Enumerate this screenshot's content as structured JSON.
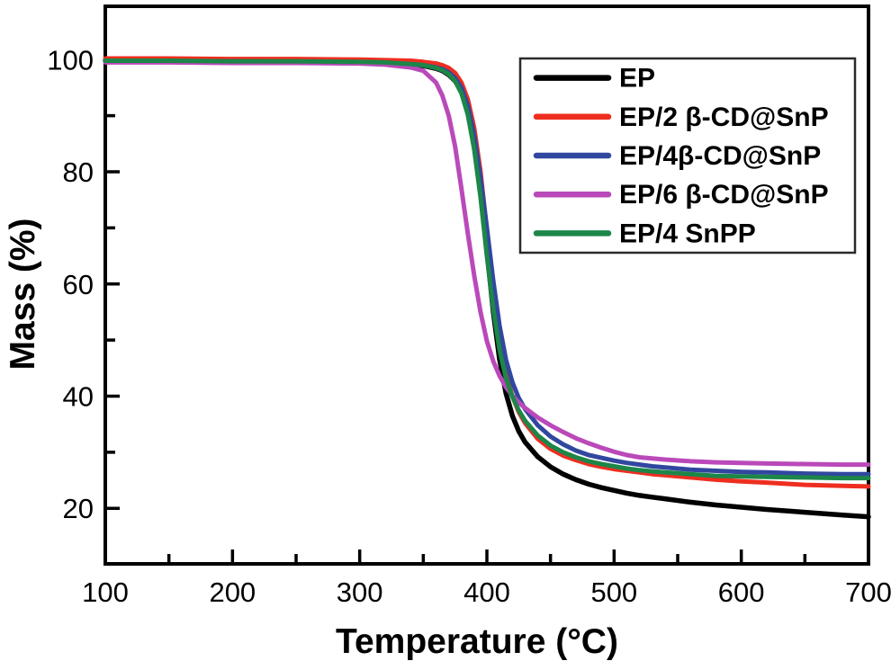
{
  "chart_data": {
    "type": "line",
    "title": "",
    "xlabel": "Temperature (°C)",
    "ylabel": "Mass (%)",
    "xlim": [
      100,
      700
    ],
    "ylim": [
      10.1,
      109.5
    ],
    "x_major_ticks": [
      100,
      200,
      300,
      400,
      500,
      600,
      700
    ],
    "x_minor_ticks": [
      150,
      250,
      350,
      450,
      550,
      650
    ],
    "y_major_ticks": [
      20,
      40,
      60,
      80,
      100
    ],
    "y_minor_ticks": [
      30,
      50,
      70,
      90
    ],
    "grid": false,
    "legend_position": "upper right",
    "axis_color": "#000000",
    "x": [
      100,
      150,
      200,
      250,
      300,
      320,
      340,
      350,
      360,
      365,
      370,
      375,
      380,
      385,
      390,
      395,
      400,
      405,
      410,
      415,
      420,
      425,
      430,
      440,
      450,
      460,
      470,
      480,
      490,
      500,
      510,
      520,
      530,
      540,
      560,
      580,
      600,
      620,
      650,
      680,
      700
    ],
    "series": [
      {
        "name": "EP",
        "color": "#000000",
        "final_residue_pct": 18.5,
        "values": [
          99.8,
          99.8,
          99.7,
          99.6,
          99.5,
          99.4,
          99.1,
          98.9,
          98.4,
          98.0,
          97.3,
          96.2,
          94.3,
          91.0,
          85.5,
          77.0,
          66.0,
          55.0,
          46.5,
          40.5,
          36.5,
          33.8,
          31.8,
          29.2,
          27.4,
          26.1,
          25.1,
          24.3,
          23.7,
          23.2,
          22.7,
          22.3,
          22.0,
          21.7,
          21.1,
          20.6,
          20.2,
          19.8,
          19.3,
          18.8,
          18.5
        ]
      },
      {
        "name": "EP/2 β-CD@SnP",
        "color": "#ee2e20",
        "final_residue_pct": 23.9,
        "values": [
          100.2,
          100.2,
          100.1,
          100.1,
          100.0,
          99.9,
          99.8,
          99.6,
          99.3,
          99.0,
          98.5,
          97.6,
          95.9,
          92.9,
          87.8,
          80.0,
          69.5,
          58.8,
          50.0,
          44.0,
          40.0,
          37.2,
          35.2,
          32.4,
          30.6,
          29.4,
          28.6,
          27.9,
          27.4,
          27.0,
          26.7,
          26.4,
          26.1,
          25.9,
          25.5,
          25.1,
          24.8,
          24.6,
          24.2,
          24.0,
          23.9
        ]
      },
      {
        "name": "EP/4β-CD@SnP",
        "color": "#31479f",
        "final_residue_pct": 26.1,
        "values": [
          99.7,
          99.7,
          99.7,
          99.6,
          99.5,
          99.4,
          99.2,
          99.0,
          98.6,
          98.3,
          97.7,
          96.7,
          95.0,
          91.8,
          86.5,
          79.0,
          70.0,
          60.5,
          52.5,
          46.5,
          42.5,
          39.7,
          37.7,
          34.8,
          32.8,
          31.4,
          30.3,
          29.5,
          29.0,
          28.5,
          28.1,
          27.8,
          27.5,
          27.3,
          26.9,
          26.7,
          26.5,
          26.4,
          26.2,
          26.1,
          26.1
        ]
      },
      {
        "name": "EP/6 β-CD@SnP",
        "color": "#ba49ba",
        "final_residue_pct": 27.8,
        "values": [
          99.5,
          99.5,
          99.4,
          99.4,
          99.3,
          99.1,
          98.6,
          98.0,
          95.9,
          93.6,
          90.0,
          84.5,
          77.0,
          69.0,
          61.5,
          55.0,
          49.8,
          46.2,
          43.6,
          41.6,
          40.1,
          38.9,
          37.9,
          36.2,
          34.8,
          33.6,
          32.5,
          31.6,
          30.8,
          30.1,
          29.5,
          29.1,
          28.9,
          28.7,
          28.4,
          28.2,
          28.1,
          28.0,
          27.9,
          27.8,
          27.8
        ]
      },
      {
        "name": "EP/4 SnPP",
        "color": "#1d8649",
        "final_residue_pct": 25.4,
        "values": [
          99.8,
          99.8,
          99.7,
          99.7,
          99.6,
          99.5,
          99.2,
          99.0,
          98.5,
          98.1,
          97.4,
          96.2,
          94.0,
          90.2,
          84.0,
          75.5,
          65.0,
          55.5,
          48.2,
          43.2,
          39.9,
          37.5,
          35.6,
          33.0,
          31.2,
          30.0,
          29.1,
          28.4,
          27.9,
          27.5,
          27.1,
          26.8,
          26.6,
          26.4,
          26.1,
          25.8,
          25.7,
          25.6,
          25.5,
          25.4,
          25.4
        ]
      }
    ]
  }
}
